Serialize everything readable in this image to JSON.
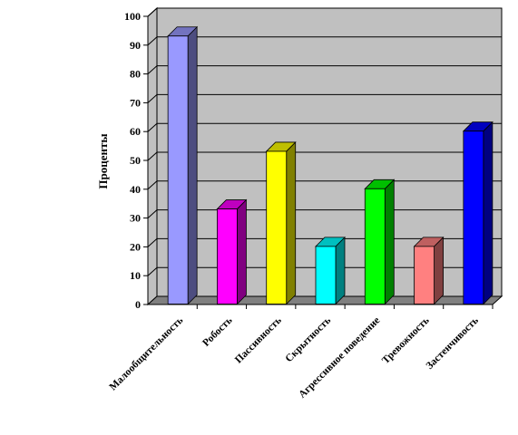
{
  "chart_data": {
    "type": "bar",
    "title": "",
    "xlabel": "",
    "ylabel": "Проценты",
    "ylim": [
      0,
      100
    ],
    "ytick_step": 10,
    "grid": true,
    "legend": "none",
    "categories": [
      "Малообщительность",
      "Робость",
      "Пассивность",
      "Скрытность",
      "Агрессивное поведение",
      "Тревожность",
      "Застенчивость"
    ],
    "values": [
      93,
      33,
      53,
      20,
      40,
      20,
      60
    ],
    "colors": [
      "#9999ff",
      "#ff00ff",
      "#ffff00",
      "#00ffff",
      "#00ff00",
      "#ff8080",
      "#0000ff"
    ],
    "wall_color": "#c0c0c0",
    "floor_color": "#808080"
  }
}
